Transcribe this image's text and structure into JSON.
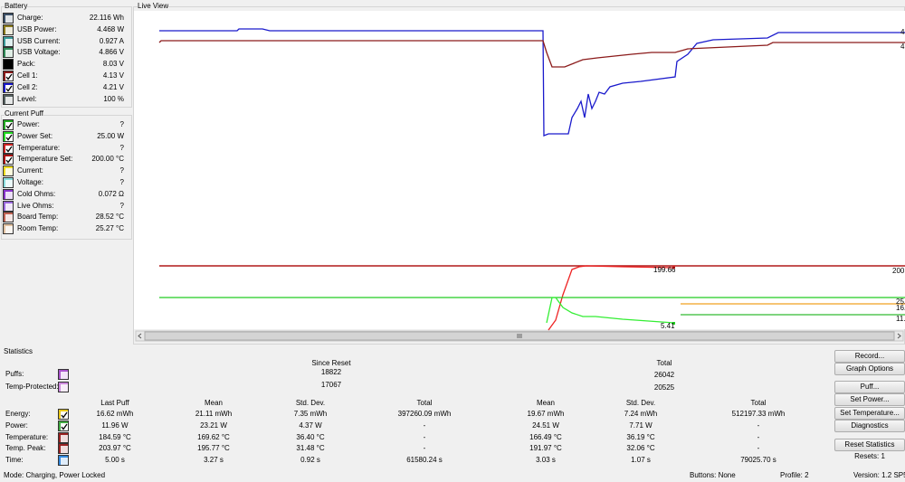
{
  "battery": {
    "title": "Battery",
    "items": [
      {
        "label": "Charge:",
        "value": "22.116 Wh",
        "color": "#3b4f66",
        "checked": false
      },
      {
        "label": "USB Power:",
        "value": "4.468 W",
        "color": "#8a7a1c",
        "checked": false
      },
      {
        "label": "USB Current:",
        "value": "0.927 A",
        "color": "#3a9a9a",
        "checked": false
      },
      {
        "label": "USB Voltage:",
        "value": "4.866 V",
        "color": "#2e8b57",
        "checked": false
      },
      {
        "label": "Pack:",
        "value": "8.03 V",
        "color": "#000000",
        "checked": false
      },
      {
        "label": "Cell 1:",
        "value": "4.13 V",
        "color": "#8b1a1a",
        "checked": true
      },
      {
        "label": "Cell 2:",
        "value": "4.21 V",
        "color": "#1a1acc",
        "checked": true
      },
      {
        "label": "Level:",
        "value": "100 %",
        "color": "#556060",
        "checked": false
      }
    ]
  },
  "current_puff": {
    "title": "Current Puff",
    "items": [
      {
        "label": "Power:",
        "value": "?",
        "color": "#22aa22",
        "checked": true
      },
      {
        "label": "Power Set:",
        "value": "25.00 W",
        "color": "#22dd22",
        "checked": true
      },
      {
        "label": "Temperature:",
        "value": "?",
        "color": "#cc2222",
        "checked": true
      },
      {
        "label": "Temperature Set:",
        "value": "200.00 °C",
        "color": "#aa1111",
        "checked": true
      },
      {
        "label": "Current:",
        "value": "?",
        "color": "#eedd22",
        "checked": false
      },
      {
        "label": "Voltage:",
        "value": "?",
        "color": "#88dddd",
        "checked": false
      },
      {
        "label": "Cold Ohms:",
        "value": "0.072 Ω",
        "color": "#8833cc",
        "checked": false
      },
      {
        "label": "Live Ohms:",
        "value": "?",
        "color": "#9966dd",
        "checked": false
      },
      {
        "label": "Board Temp:",
        "value": "28.52 °C",
        "color": "#c06050",
        "checked": false
      },
      {
        "label": "Room Temp:",
        "value": "25.27 °C",
        "color": "#e0c0a0",
        "checked": false
      }
    ]
  },
  "live_view": {
    "title": "Live View",
    "labels": [
      "4.",
      "4.",
      "199.66",
      "200.",
      "25.",
      "16.",
      "5.41",
      "11."
    ]
  },
  "statistics": {
    "title": "Statistics",
    "since_reset": "Since Reset",
    "total": "Total",
    "counts": [
      {
        "label": "Puffs:",
        "color": "#aa55cc",
        "since_reset": "18822",
        "total": "26042"
      },
      {
        "label": "Temp-Protected:",
        "color": "#cc88dd",
        "since_reset": "17067",
        "total": "20525"
      }
    ],
    "columns": [
      "Last Puff",
      "Mean",
      "Std. Dev.",
      "Total",
      "Mean",
      "Std. Dev.",
      "Total"
    ],
    "rows": [
      {
        "label": "Energy:",
        "color": "#e8c81c",
        "checked": true,
        "cells": [
          "16.62 mWh",
          "21.11 mWh",
          "7.35 mWh",
          "397260.09 mWh",
          "19.67 mWh",
          "7.24 mWh",
          "512197.33 mWh"
        ]
      },
      {
        "label": "Power:",
        "color": "#44aa44",
        "checked": true,
        "cells": [
          "11.96 W",
          "23.21 W",
          "4.37 W",
          "-",
          "24.51 W",
          "7.71 W",
          "-"
        ]
      },
      {
        "label": "Temperature:",
        "color": "#992222",
        "checked": false,
        "cells": [
          "184.59 °C",
          "169.62 °C",
          "36.40 °C",
          "-",
          "166.49 °C",
          "36.19 °C",
          "-"
        ]
      },
      {
        "label": "Temp. Peak:",
        "color": "#992222",
        "checked": false,
        "cells": [
          "203.97 °C",
          "195.77 °C",
          "31.48 °C",
          "-",
          "191.97 °C",
          "32.06 °C",
          "-"
        ]
      },
      {
        "label": "Time:",
        "color": "#3388dd",
        "checked": false,
        "cells": [
          "5.00 s",
          "3.27 s",
          "0.92 s",
          "61580.24 s",
          "3.03 s",
          "1.07 s",
          "79025.70 s"
        ]
      }
    ]
  },
  "buttons": [
    "Record...",
    "Graph Options",
    "Puff...",
    "Set Power...",
    "Set Temperature...",
    "Diagnostics",
    "Reset Statistics"
  ],
  "resets": "Resets: 1",
  "status_bar": {
    "mode": "Mode: Charging, Power Locked",
    "buttons": "Buttons: None",
    "profile": "Profile: 2",
    "version": "Version: 1.2 SP5"
  }
}
